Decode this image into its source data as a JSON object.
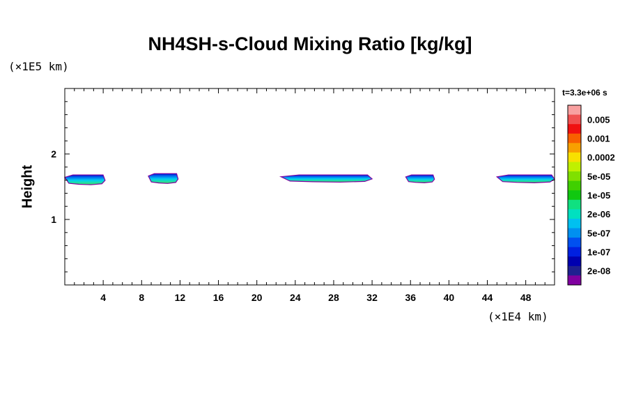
{
  "chart_data": {
    "type": "heatmap",
    "title": "NH4SH-s-Cloud Mixing Ratio [kg/kg]",
    "xlabel": "",
    "ylabel": "Height",
    "x_unit": "(×1E4 km)",
    "y_unit": "(×1E5 km)",
    "time_label": "t=3.3e+06 s",
    "xlim": [
      0,
      51
    ],
    "ylim": [
      0,
      3
    ],
    "x_ticks": [
      4,
      8,
      12,
      16,
      20,
      24,
      28,
      32,
      36,
      40,
      44,
      48
    ],
    "y_ticks": [
      1,
      2
    ],
    "colorbar": {
      "labels": [
        "0.005",
        "0.001",
        "0.0002",
        "5e-05",
        "1e-05",
        "2e-06",
        "5e-07",
        "1e-07",
        "2e-08"
      ],
      "colors": [
        "#f8a0a0",
        "#f05050",
        "#f01010",
        "#f86000",
        "#f8a000",
        "#f8e000",
        "#c0f000",
        "#80e000",
        "#40d000",
        "#10c810",
        "#10e080",
        "#00e0c0",
        "#00c0f0",
        "#0090f0",
        "#0050f0",
        "#0020e0",
        "#0000b0",
        "#202090",
        "#8000a0"
      ]
    },
    "clouds": [
      {
        "x_start": 0,
        "x_end": 4.2,
        "y_bottom": 1.53,
        "y_top": 1.68
      },
      {
        "x_start": 8.7,
        "x_end": 11.8,
        "y_bottom": 1.55,
        "y_top": 1.7
      },
      {
        "x_start": 22.5,
        "x_end": 32,
        "y_bottom": 1.57,
        "y_top": 1.68
      },
      {
        "x_start": 35.5,
        "x_end": 38.5,
        "y_bottom": 1.56,
        "y_top": 1.68
      },
      {
        "x_start": 45,
        "x_end": 51,
        "y_bottom": 1.56,
        "y_top": 1.68
      }
    ]
  }
}
